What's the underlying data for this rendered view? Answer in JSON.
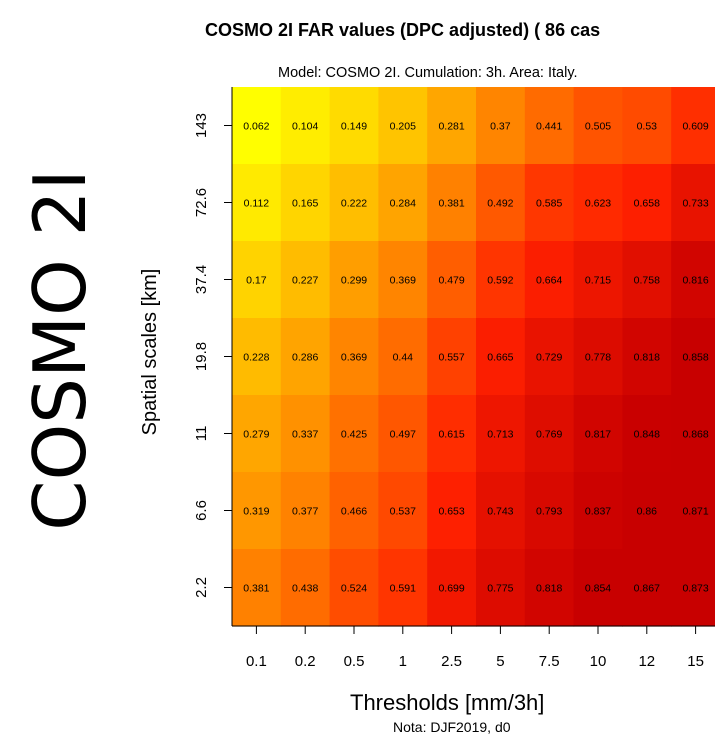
{
  "side_label": "COSMO 2I",
  "chart_data": {
    "type": "heatmap",
    "title": "COSMO 2I FAR values (DPC adjusted) (  86 cas",
    "subtitle": "Model: COSMO 2I. Cumulation: 3h. Area: Italy.",
    "xlabel": "Thresholds [mm/3h]",
    "ylabel": "Spatial scales [km]",
    "note": "Nota: DJF2019, d0",
    "x_categories": [
      "0.1",
      "0.2",
      "0.5",
      "1",
      "2.5",
      "5",
      "7.5",
      "10",
      "12",
      "15"
    ],
    "y_categories": [
      "143",
      "72.6",
      "37.4",
      "19.8",
      "11",
      "6.6",
      "2.2"
    ],
    "values": [
      [
        0.062,
        0.104,
        0.149,
        0.205,
        0.281,
        0.37,
        0.441,
        0.505,
        0.53,
        0.609
      ],
      [
        0.112,
        0.165,
        0.222,
        0.284,
        0.381,
        0.492,
        0.585,
        0.623,
        0.658,
        0.733
      ],
      [
        0.17,
        0.227,
        0.299,
        0.369,
        0.479,
        0.592,
        0.664,
        0.715,
        0.758,
        0.816
      ],
      [
        0.228,
        0.286,
        0.369,
        0.44,
        0.557,
        0.665,
        0.729,
        0.778,
        0.818,
        0.858
      ],
      [
        0.279,
        0.337,
        0.425,
        0.497,
        0.615,
        0.713,
        0.769,
        0.817,
        0.848,
        0.868
      ],
      [
        0.319,
        0.377,
        0.466,
        0.537,
        0.653,
        0.743,
        0.793,
        0.837,
        0.86,
        0.871
      ],
      [
        0.381,
        0.438,
        0.524,
        0.591,
        0.699,
        0.775,
        0.818,
        0.854,
        0.867,
        0.873
      ]
    ],
    "color_scale": [
      "#ffff00",
      "#ff9e00",
      "#ff2000",
      "#c80000"
    ],
    "color_domain": [
      0.06,
      0.3,
      0.65,
      0.85
    ],
    "colormap": "heat (yellow-orange-red)"
  }
}
